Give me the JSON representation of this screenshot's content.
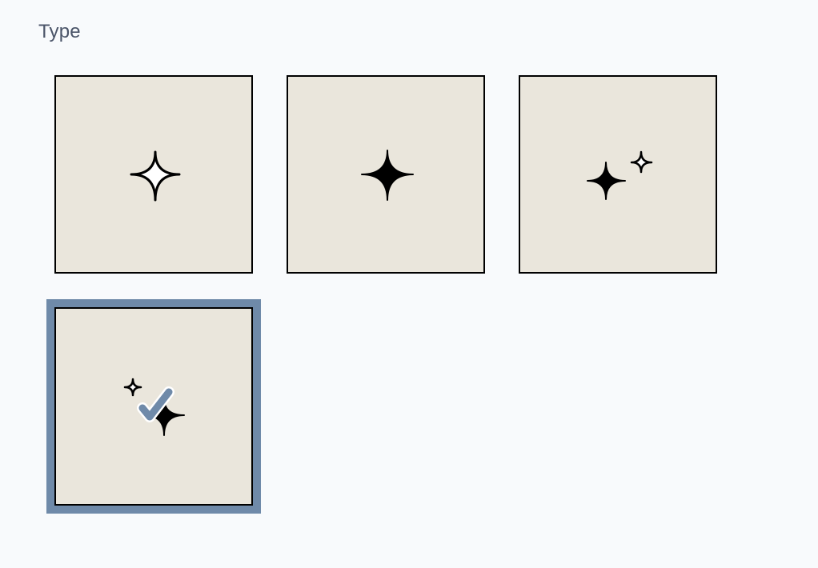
{
  "type_label": "Type",
  "options": [
    {
      "id": "sparkle-outline",
      "icon": "sparkle-outline-icon",
      "selected": false
    },
    {
      "id": "sparkle-filled",
      "icon": "sparkle-filled-icon",
      "selected": false
    },
    {
      "id": "sparkles-pair-right",
      "icon": "sparkles-pair-icon",
      "selected": false
    },
    {
      "id": "sparkles-pair-left",
      "icon": "sparkles-pair-alt-icon",
      "selected": true
    }
  ],
  "colors": {
    "tile_bg": "#eae6dc",
    "selection": "#6f8aa9",
    "background": "#f8fafc"
  }
}
